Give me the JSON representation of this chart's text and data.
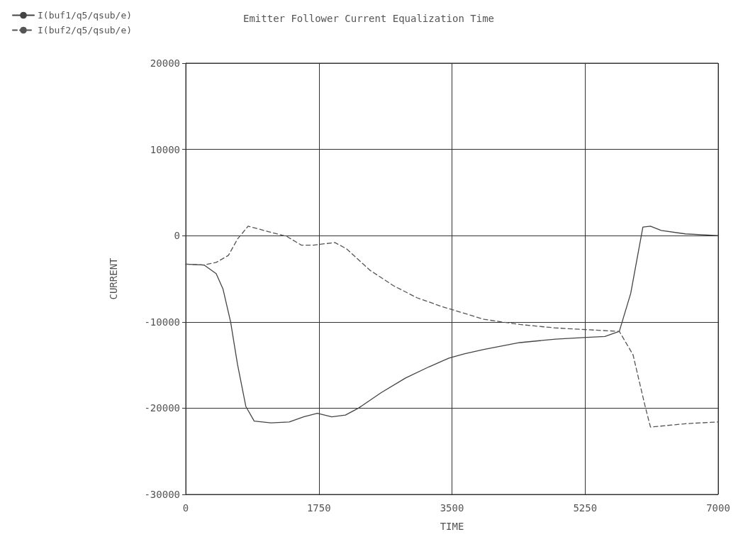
{
  "chart_data": {
    "type": "line",
    "title": "Emitter Follower Current Equalization Time",
    "xlabel": "TIME",
    "ylabel": "CURRENT",
    "xlim": [
      0,
      7000
    ],
    "xticks": [
      0,
      1750,
      3500,
      5250,
      7000
    ],
    "ylim": [
      -30000,
      20000
    ],
    "yticks": [
      -30000,
      -20000,
      -10000,
      0,
      10000,
      20000
    ],
    "grid": true,
    "legend": "top left",
    "marker": "none",
    "series": [
      {
        "name": "I(buf1/q5/qsub/e)",
        "color": "#444444",
        "line_style": "solid",
        "x": [
          0,
          240,
          400,
          490,
          590,
          680,
          790,
          900,
          1120,
          1360,
          1550,
          1730,
          1920,
          2100,
          2270,
          2570,
          2890,
          3200,
          3460,
          3660,
          3920,
          4390,
          4860,
          5270,
          5510,
          5700,
          5850,
          6010,
          6110,
          6250,
          6570,
          7000
        ],
        "values": [
          -3300,
          -3400,
          -4400,
          -6200,
          -10000,
          -14900,
          -19800,
          -21500,
          -21700,
          -21600,
          -21000,
          -20600,
          -21000,
          -20800,
          -20000,
          -18200,
          -16500,
          -15200,
          -14200,
          -13700,
          -13200,
          -12400,
          -12000,
          -11800,
          -11700,
          -11100,
          -6700,
          1000,
          1100,
          600,
          200,
          0
        ]
      },
      {
        "name": "I(buf2/q5/qsub/e)",
        "color": "#555555",
        "line_style": "dashed",
        "x": [
          0,
          240,
          400,
          560,
          680,
          820,
          1030,
          1330,
          1520,
          1680,
          1960,
          2110,
          2420,
          2730,
          3040,
          3360,
          3660,
          3920,
          4390,
          4860,
          5270,
          5700,
          5880,
          6040,
          6110,
          6570,
          7000
        ],
        "values": [
          -3300,
          -3400,
          -3100,
          -2300,
          -400,
          1100,
          600,
          -100,
          -1100,
          -1100,
          -800,
          -1500,
          -4000,
          -5800,
          -7200,
          -8200,
          -9000,
          -9700,
          -10300,
          -10700,
          -10900,
          -11100,
          -13800,
          -19800,
          -22200,
          -21800,
          -21600
        ]
      }
    ]
  }
}
